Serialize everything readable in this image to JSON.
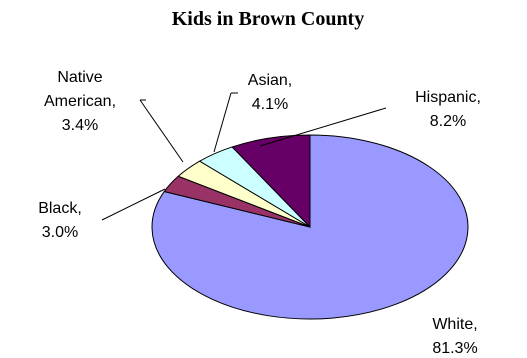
{
  "chart_data": {
    "type": "pie",
    "title": "Kids in Brown County",
    "slices": [
      {
        "name": "White",
        "value": 81.3,
        "label_name": "White,",
        "label_value": "81.3%",
        "color": "#9999ff"
      },
      {
        "name": "Black",
        "value": 3.0,
        "label_name": "Black,",
        "label_value": "3.0%",
        "color": "#993366"
      },
      {
        "name": "Native American",
        "value": 3.4,
        "label_name_1": "Native",
        "label_name_2": "American,",
        "label_value": "3.4%",
        "color": "#ffffcc"
      },
      {
        "name": "Asian",
        "value": 4.1,
        "label_name": "Asian,",
        "label_value": "4.1%",
        "color": "#ccffff"
      },
      {
        "name": "Hispanic",
        "value": 8.2,
        "label_name": "Hispanic,",
        "label_value": "8.2%",
        "color": "#660066"
      }
    ]
  }
}
